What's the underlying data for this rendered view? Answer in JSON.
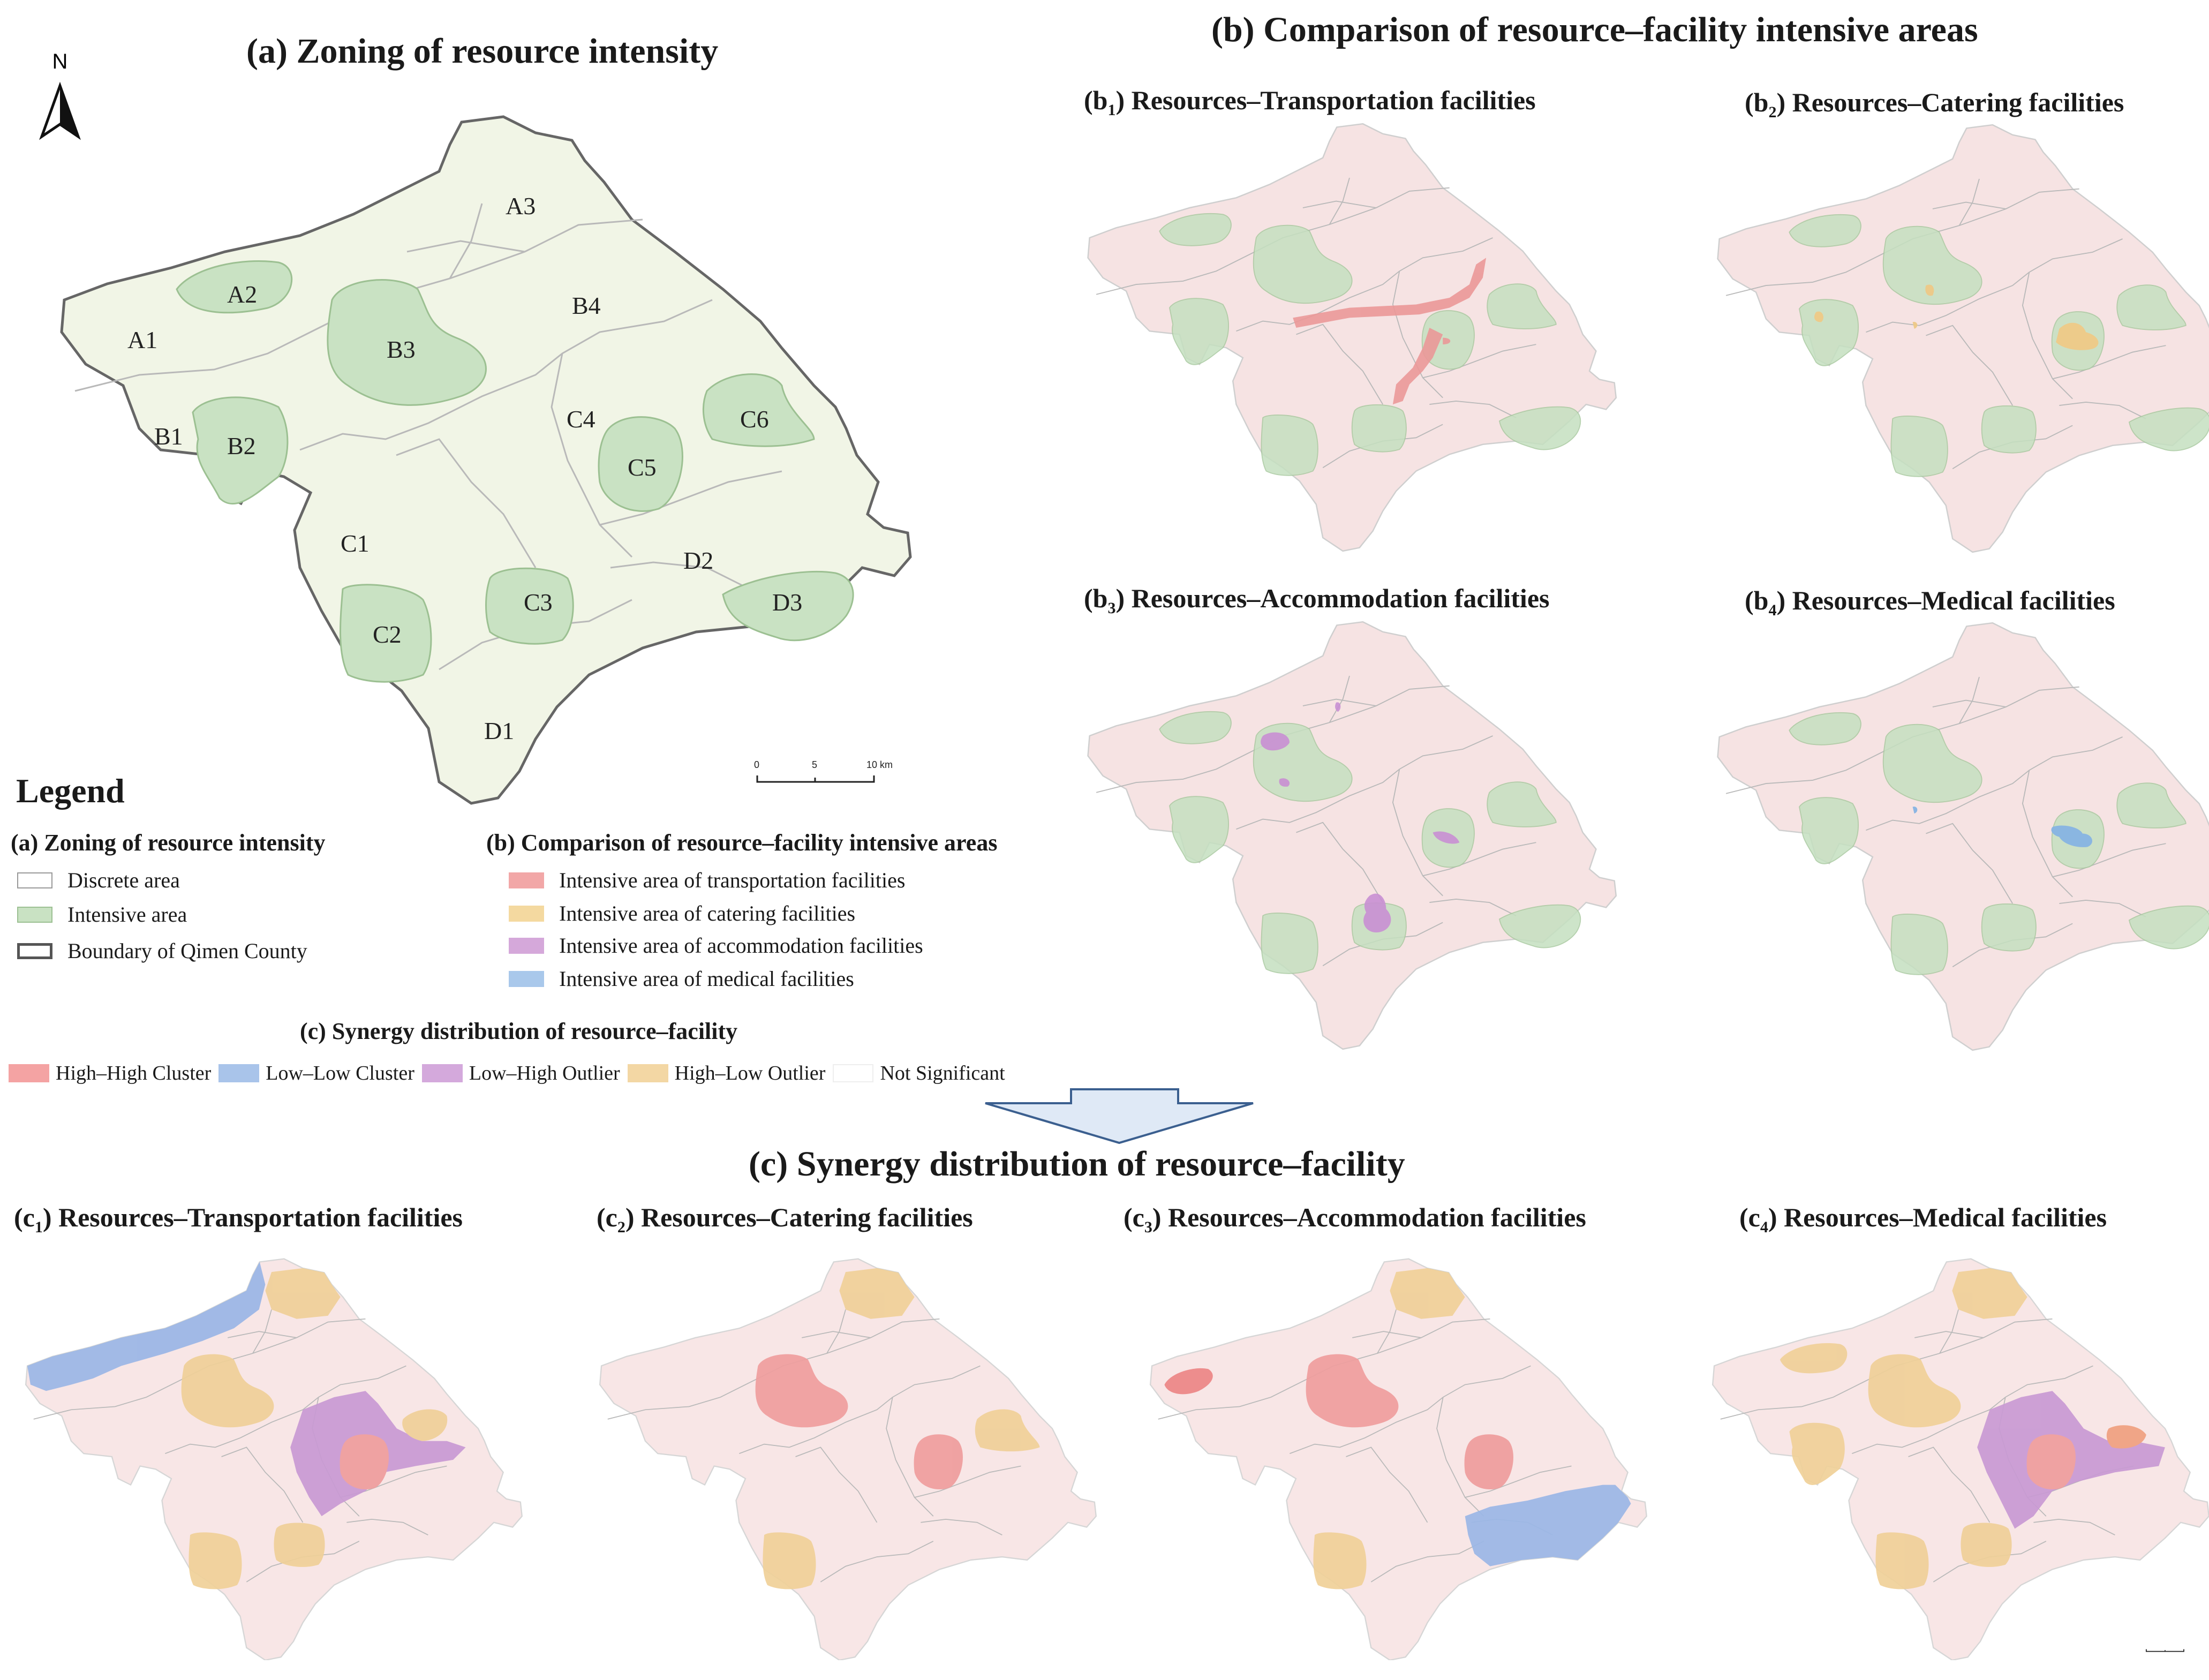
{
  "titles": {
    "a": "(a) Zoning of resource intensity",
    "b": "(b) Comparison of resource–facility intensive areas",
    "c": "(c) Synergy distribution of resource–facility"
  },
  "b_panels": [
    {
      "prefix": "(b",
      "num": "1",
      "suffix": ") Resources–Transportation facilities"
    },
    {
      "prefix": "(b",
      "num": "2",
      "suffix": ") Resources–Catering facilities"
    },
    {
      "prefix": "(b",
      "num": "3",
      "suffix": ") Resources–Accommodation facilities"
    },
    {
      "prefix": "(b",
      "num": "4",
      "suffix": ") Resources–Medical facilities"
    }
  ],
  "c_panels": [
    {
      "prefix": "(c",
      "num": "1",
      "suffix": ") Resources–Transportation facilities"
    },
    {
      "prefix": "(c",
      "num": "2",
      "suffix": ") Resources–Catering facilities"
    },
    {
      "prefix": "(c",
      "num": "3",
      "suffix": ") Resources–Accommodation facilities"
    },
    {
      "prefix": "(c",
      "num": "4",
      "suffix": ") Resources–Medical facilities"
    }
  ],
  "north": "N",
  "zones": [
    "A1",
    "A2",
    "A3",
    "B1",
    "B2",
    "B3",
    "B4",
    "C1",
    "C2",
    "C3",
    "C4",
    "C5",
    "C6",
    "D1",
    "D2",
    "D3"
  ],
  "scale": {
    "t0": "0",
    "t1": "5",
    "t2": "10 km"
  },
  "legend": {
    "heading": "Legend",
    "a_title": "(a) Zoning of resource intensity",
    "a_items": [
      "Discrete area",
      "Intensive area",
      "Boundary of Qimen County"
    ],
    "b_title": "(b) Comparison of resource–facility intensive areas",
    "b_items": [
      "Intensive area of transportation facilities",
      "Intensive area of catering facilities",
      "Intensive area of accommodation facilities",
      "Intensive area of medical facilities"
    ],
    "c_title": "(c) Synergy distribution of resource–facility",
    "c_items": [
      "High–High Cluster",
      "Low–Low Cluster",
      "Low–High Outlier",
      "High–Low Outlier",
      "Not Significant"
    ]
  },
  "colors": {
    "discrete": "#f1f5e6",
    "intensive": "#c9e2c3",
    "transport": "#f2a7a7",
    "catering": "#f4d9a0",
    "accommodation": "#d5a8da",
    "medical": "#a9c8eb",
    "high_high": "#f4a3a3",
    "low_low": "#a9c4ea",
    "low_high": "#d4a9dc",
    "high_low": "#f3d7a4",
    "not_sig": "#ffffff"
  }
}
